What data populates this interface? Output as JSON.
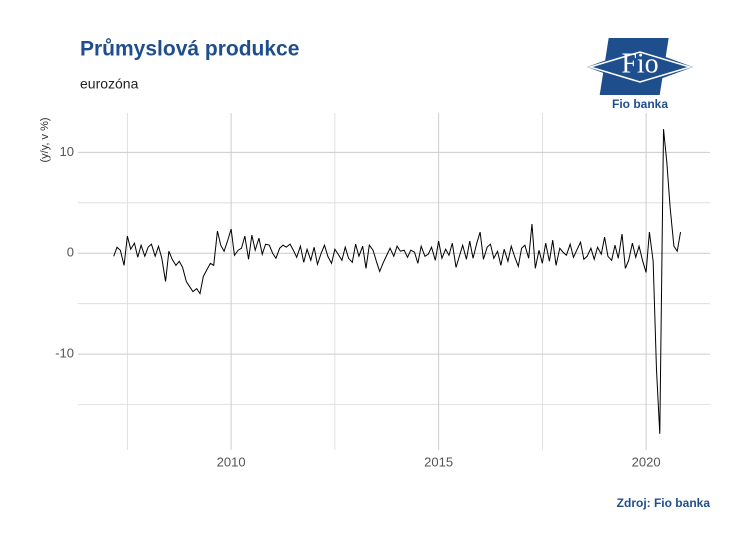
{
  "chart_data": {
    "type": "line",
    "title": "Průmyslová produkce",
    "subtitle": "eurozóna",
    "y_label": "(y/y, v %)",
    "source": "Zdroj: Fio banka",
    "logo": {
      "text": "Fio",
      "caption": "Fio banka"
    },
    "color": "#000000",
    "grid": true,
    "xlim": [
      2006.31,
      2021.54
    ],
    "xticks": [
      2010,
      2015,
      2020
    ],
    "x_minor_ticks": [
      2007.5,
      2012.5,
      2017.5
    ],
    "ylim": [
      -19.5,
      13.9
    ],
    "yticks": [
      -10,
      0,
      10
    ],
    "y_minor_ticks": [
      -15,
      -5,
      5
    ],
    "x": [
      2007.17,
      2007.25,
      2007.33,
      2007.42,
      2007.5,
      2007.58,
      2007.67,
      2007.75,
      2007.83,
      2007.92,
      2008,
      2008.08,
      2008.17,
      2008.25,
      2008.33,
      2008.42,
      2008.5,
      2008.58,
      2008.67,
      2008.75,
      2008.83,
      2008.92,
      2009,
      2009.08,
      2009.17,
      2009.25,
      2009.33,
      2009.42,
      2009.5,
      2009.58,
      2009.67,
      2009.75,
      2009.83,
      2009.92,
      2010,
      2010.08,
      2010.17,
      2010.25,
      2010.33,
      2010.42,
      2010.5,
      2010.58,
      2010.67,
      2010.75,
      2010.83,
      2010.92,
      2011,
      2011.08,
      2011.17,
      2011.25,
      2011.33,
      2011.42,
      2011.5,
      2011.58,
      2011.67,
      2011.75,
      2011.83,
      2011.92,
      2012,
      2012.08,
      2012.17,
      2012.25,
      2012.33,
      2012.42,
      2012.5,
      2012.58,
      2012.67,
      2012.75,
      2012.83,
      2012.92,
      2013,
      2013.08,
      2013.17,
      2013.25,
      2013.33,
      2013.42,
      2013.5,
      2013.58,
      2013.67,
      2013.75,
      2013.83,
      2013.92,
      2014,
      2014.08,
      2014.17,
      2014.25,
      2014.33,
      2014.42,
      2014.5,
      2014.58,
      2014.67,
      2014.75,
      2014.83,
      2014.92,
      2015,
      2015.08,
      2015.17,
      2015.25,
      2015.33,
      2015.42,
      2015.5,
      2015.58,
      2015.67,
      2015.75,
      2015.83,
      2015.92,
      2016,
      2016.08,
      2016.17,
      2016.25,
      2016.33,
      2016.42,
      2016.5,
      2016.58,
      2016.67,
      2016.75,
      2016.83,
      2016.92,
      2017,
      2017.08,
      2017.17,
      2017.25,
      2017.33,
      2017.42,
      2017.5,
      2017.58,
      2017.67,
      2017.75,
      2017.83,
      2017.92,
      2018,
      2018.08,
      2018.17,
      2018.25,
      2018.33,
      2018.42,
      2018.5,
      2018.58,
      2018.67,
      2018.75,
      2018.83,
      2018.92,
      2019,
      2019.08,
      2019.17,
      2019.25,
      2019.33,
      2019.42,
      2019.5,
      2019.58,
      2019.67,
      2019.75,
      2019.83,
      2019.92,
      2020,
      2020.08,
      2020.17,
      2020.25,
      2020.33,
      2020.42,
      2020.5,
      2020.58,
      2020.67,
      2020.75,
      2020.83
    ],
    "values": [
      -0.3,
      0.6,
      0.3,
      -1.2,
      1.7,
      0.4,
      1.0,
      -0.4,
      0.8,
      -0.3,
      0.6,
      0.9,
      -0.3,
      0.7,
      -0.5,
      -2.8,
      0.2,
      -0.6,
      -1.2,
      -0.8,
      -1.4,
      -2.8,
      -3.3,
      -3.8,
      -3.5,
      -4.0,
      -2.3,
      -1.6,
      -1.0,
      -1.2,
      2.2,
      0.8,
      0.2,
      1.3,
      2.4,
      -0.2,
      0.3,
      0.5,
      1.7,
      -0.6,
      1.8,
      0.3,
      1.5,
      -0.1,
      0.9,
      0.8,
      0.0,
      -0.5,
      0.5,
      0.8,
      0.6,
      0.9,
      0.3,
      -0.4,
      0.7,
      -0.9,
      0.4,
      -0.7,
      0.6,
      -1.1,
      0.0,
      0.8,
      -0.3,
      -1.0,
      0.4,
      -0.1,
      -0.7,
      0.6,
      -0.5,
      -0.9,
      0.9,
      -0.3,
      0.7,
      -1.5,
      0.8,
      0.3,
      -0.8,
      -1.8,
      -0.9,
      -0.2,
      0.5,
      -0.3,
      0.7,
      0.2,
      0.3,
      -0.4,
      0.3,
      0.1,
      -1.0,
      0.7,
      -0.3,
      -0.1,
      0.6,
      -0.7,
      1.2,
      -0.5,
      0.4,
      -0.2,
      1.0,
      -1.4,
      -0.3,
      0.8,
      -0.6,
      1.2,
      -0.5,
      1.0,
      2.1,
      -0.6,
      0.6,
      0.9,
      -0.5,
      0.2,
      -1.2,
      0.4,
      -0.8,
      0.7,
      -0.3,
      -1.3,
      0.5,
      0.8,
      -0.5,
      2.9,
      -1.5,
      0.3,
      -1.0,
      1.0,
      -0.8,
      1.3,
      -1.2,
      0.5,
      0.1,
      -0.2,
      0.9,
      -0.4,
      0.3,
      1.1,
      -0.6,
      -0.3,
      0.5,
      -0.6,
      0.6,
      -0.1,
      1.6,
      -0.3,
      -0.7,
      0.8,
      -0.5,
      1.9,
      -1.5,
      -0.7,
      1.0,
      -0.4,
      0.7,
      -0.8,
      -1.9,
      2.1,
      -0.8,
      -11.5,
      -17.9,
      12.3,
      9.0,
      4.5,
      0.7,
      0.2,
      2.1
    ]
  }
}
